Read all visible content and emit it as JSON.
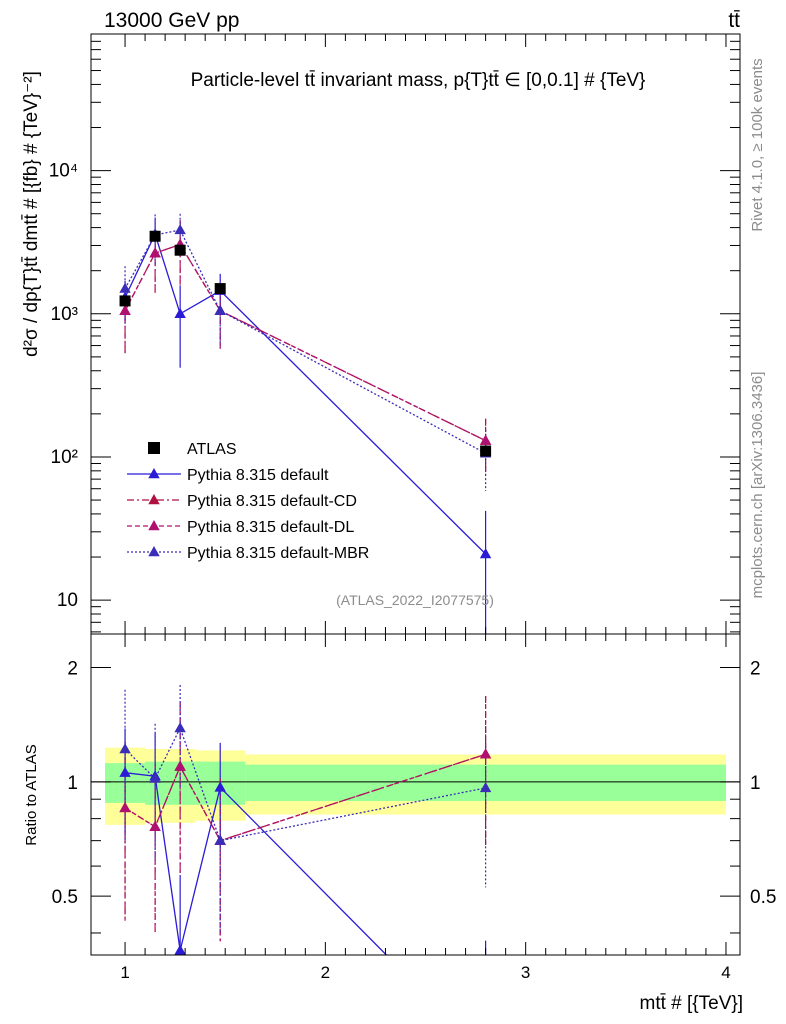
{
  "header": {
    "energy_label": "13000 GeV pp",
    "process_label": "tt̄"
  },
  "side": {
    "rivet_label": "Rivet 4.1.0, ≥ 100k events",
    "mcplots_label": "mcplots.cern.ch [arXiv:1306.3436]"
  },
  "chart_data": {
    "type": "line",
    "title": "Particle-level tt̄ invariant mass, p{T}tt̄ ∈ [0,0.1] # {TeV}",
    "watermark": "(ATLAS_2022_I2077575)",
    "xlabel": "mtt̄ # [{TeV}]",
    "ylabel": "d²σ / dp{T}tt̄ dmtt̄ # [{fb} # {TeV}⁻²]",
    "ratio_ylabel": "Ratio to ATLAS",
    "x_scale": "linear",
    "xlim": [
      0.83,
      4.07
    ],
    "y_scale": "log",
    "ylim": [
      5.8,
      90000
    ],
    "ratio_ylim": [
      0.35,
      2.45
    ],
    "x_ticks": [
      1,
      2,
      3,
      4
    ],
    "y_ticks": [
      10,
      100,
      1000,
      10000
    ],
    "y_tick_labels": [
      "10",
      "10²",
      "10³",
      "10⁴"
    ],
    "ratio_ticks": [
      0.5,
      1,
      2
    ],
    "ratio_tick_labels": [
      "0.5",
      "1",
      "2"
    ],
    "legend_position": "lower-left",
    "data": {
      "name": "ATLAS",
      "color": "#000000",
      "x": [
        1.0,
        1.15,
        1.275,
        1.475,
        2.8
      ],
      "y": [
        1230,
        3480,
        2780,
        1500,
        110
      ],
      "bins": [
        [
          0.9,
          1.1
        ],
        [
          1.1,
          1.2
        ],
        [
          1.2,
          1.35
        ],
        [
          1.35,
          1.6
        ],
        [
          1.6,
          4.0
        ]
      ],
      "band_inner": [
        0.12,
        0.13,
        0.13,
        0.13,
        0.11
      ],
      "band_outer": [
        0.23,
        0.22,
        0.22,
        0.21,
        0.18
      ]
    },
    "series": [
      {
        "name": "Pythia 8.315 default",
        "color": "#2b1bd6",
        "dash": "",
        "x": [
          1.0,
          1.15,
          1.275,
          1.475,
          2.8
        ],
        "y": [
          1300,
          3600,
          1000,
          1450,
          21
        ],
        "yerr": [
          400,
          1100,
          580,
          450,
          21
        ]
      },
      {
        "name": "Pythia 8.315 default-CD",
        "color": "#b01040",
        "dash": "7,3,2,3",
        "x": [
          1.0,
          1.15,
          1.275,
          1.475,
          2.8
        ],
        "y": [
          1050,
          2650,
          3050,
          1050,
          130
        ],
        "yerr": [
          520,
          1250,
          1450,
          480,
          55
        ]
      },
      {
        "name": "Pythia 8.315 default-DL",
        "color": "#b01070",
        "dash": "5,3",
        "x": [
          1.0,
          1.15,
          1.275,
          1.475,
          2.8
        ],
        "y": [
          1050,
          2650,
          3050,
          1050,
          130
        ],
        "yerr": [
          520,
          1250,
          1450,
          480,
          55
        ]
      },
      {
        "name": "Pythia 8.315 default-MBR",
        "color": "#3a2db8",
        "dash": "2,2",
        "x": [
          1.0,
          1.15,
          1.275,
          1.475,
          2.8
        ],
        "y": [
          1500,
          3550,
          3850,
          1050,
          106
        ],
        "yerr": [
          650,
          1400,
          1150,
          450,
          48
        ]
      }
    ]
  }
}
